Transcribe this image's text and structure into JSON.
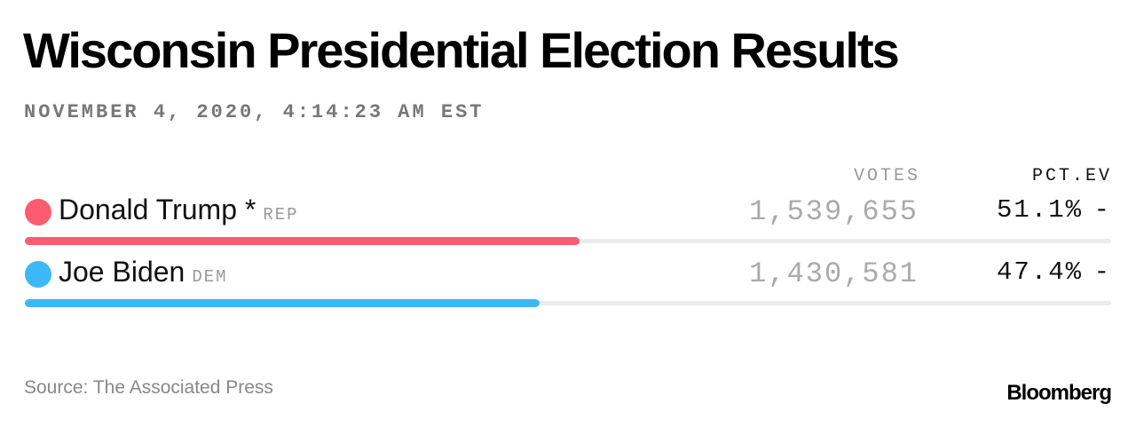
{
  "header": {
    "title": "Wisconsin Presidential Election Results",
    "timestamp": "NOVEMBER 4, 2020, 4:14:23 AM EST"
  },
  "table": {
    "columns": [
      "VOTES",
      "PCT.EV"
    ],
    "rows": [
      {
        "name": "Donald Trump",
        "winner_mark": "*",
        "party": "REP",
        "votes": "1,539,655",
        "pct": 51.1,
        "pct_label": "51.1%",
        "ev": "-",
        "color": "#fb5c70"
      },
      {
        "name": "Joe Biden",
        "party": "DEM",
        "votes": "1,430,581",
        "pct": 47.4,
        "pct_label": "47.4%",
        "ev": "-",
        "color": "#3db8f7"
      }
    ]
  },
  "footer": {
    "source": "Source: The Associated Press",
    "brand": "Bloomberg"
  }
}
